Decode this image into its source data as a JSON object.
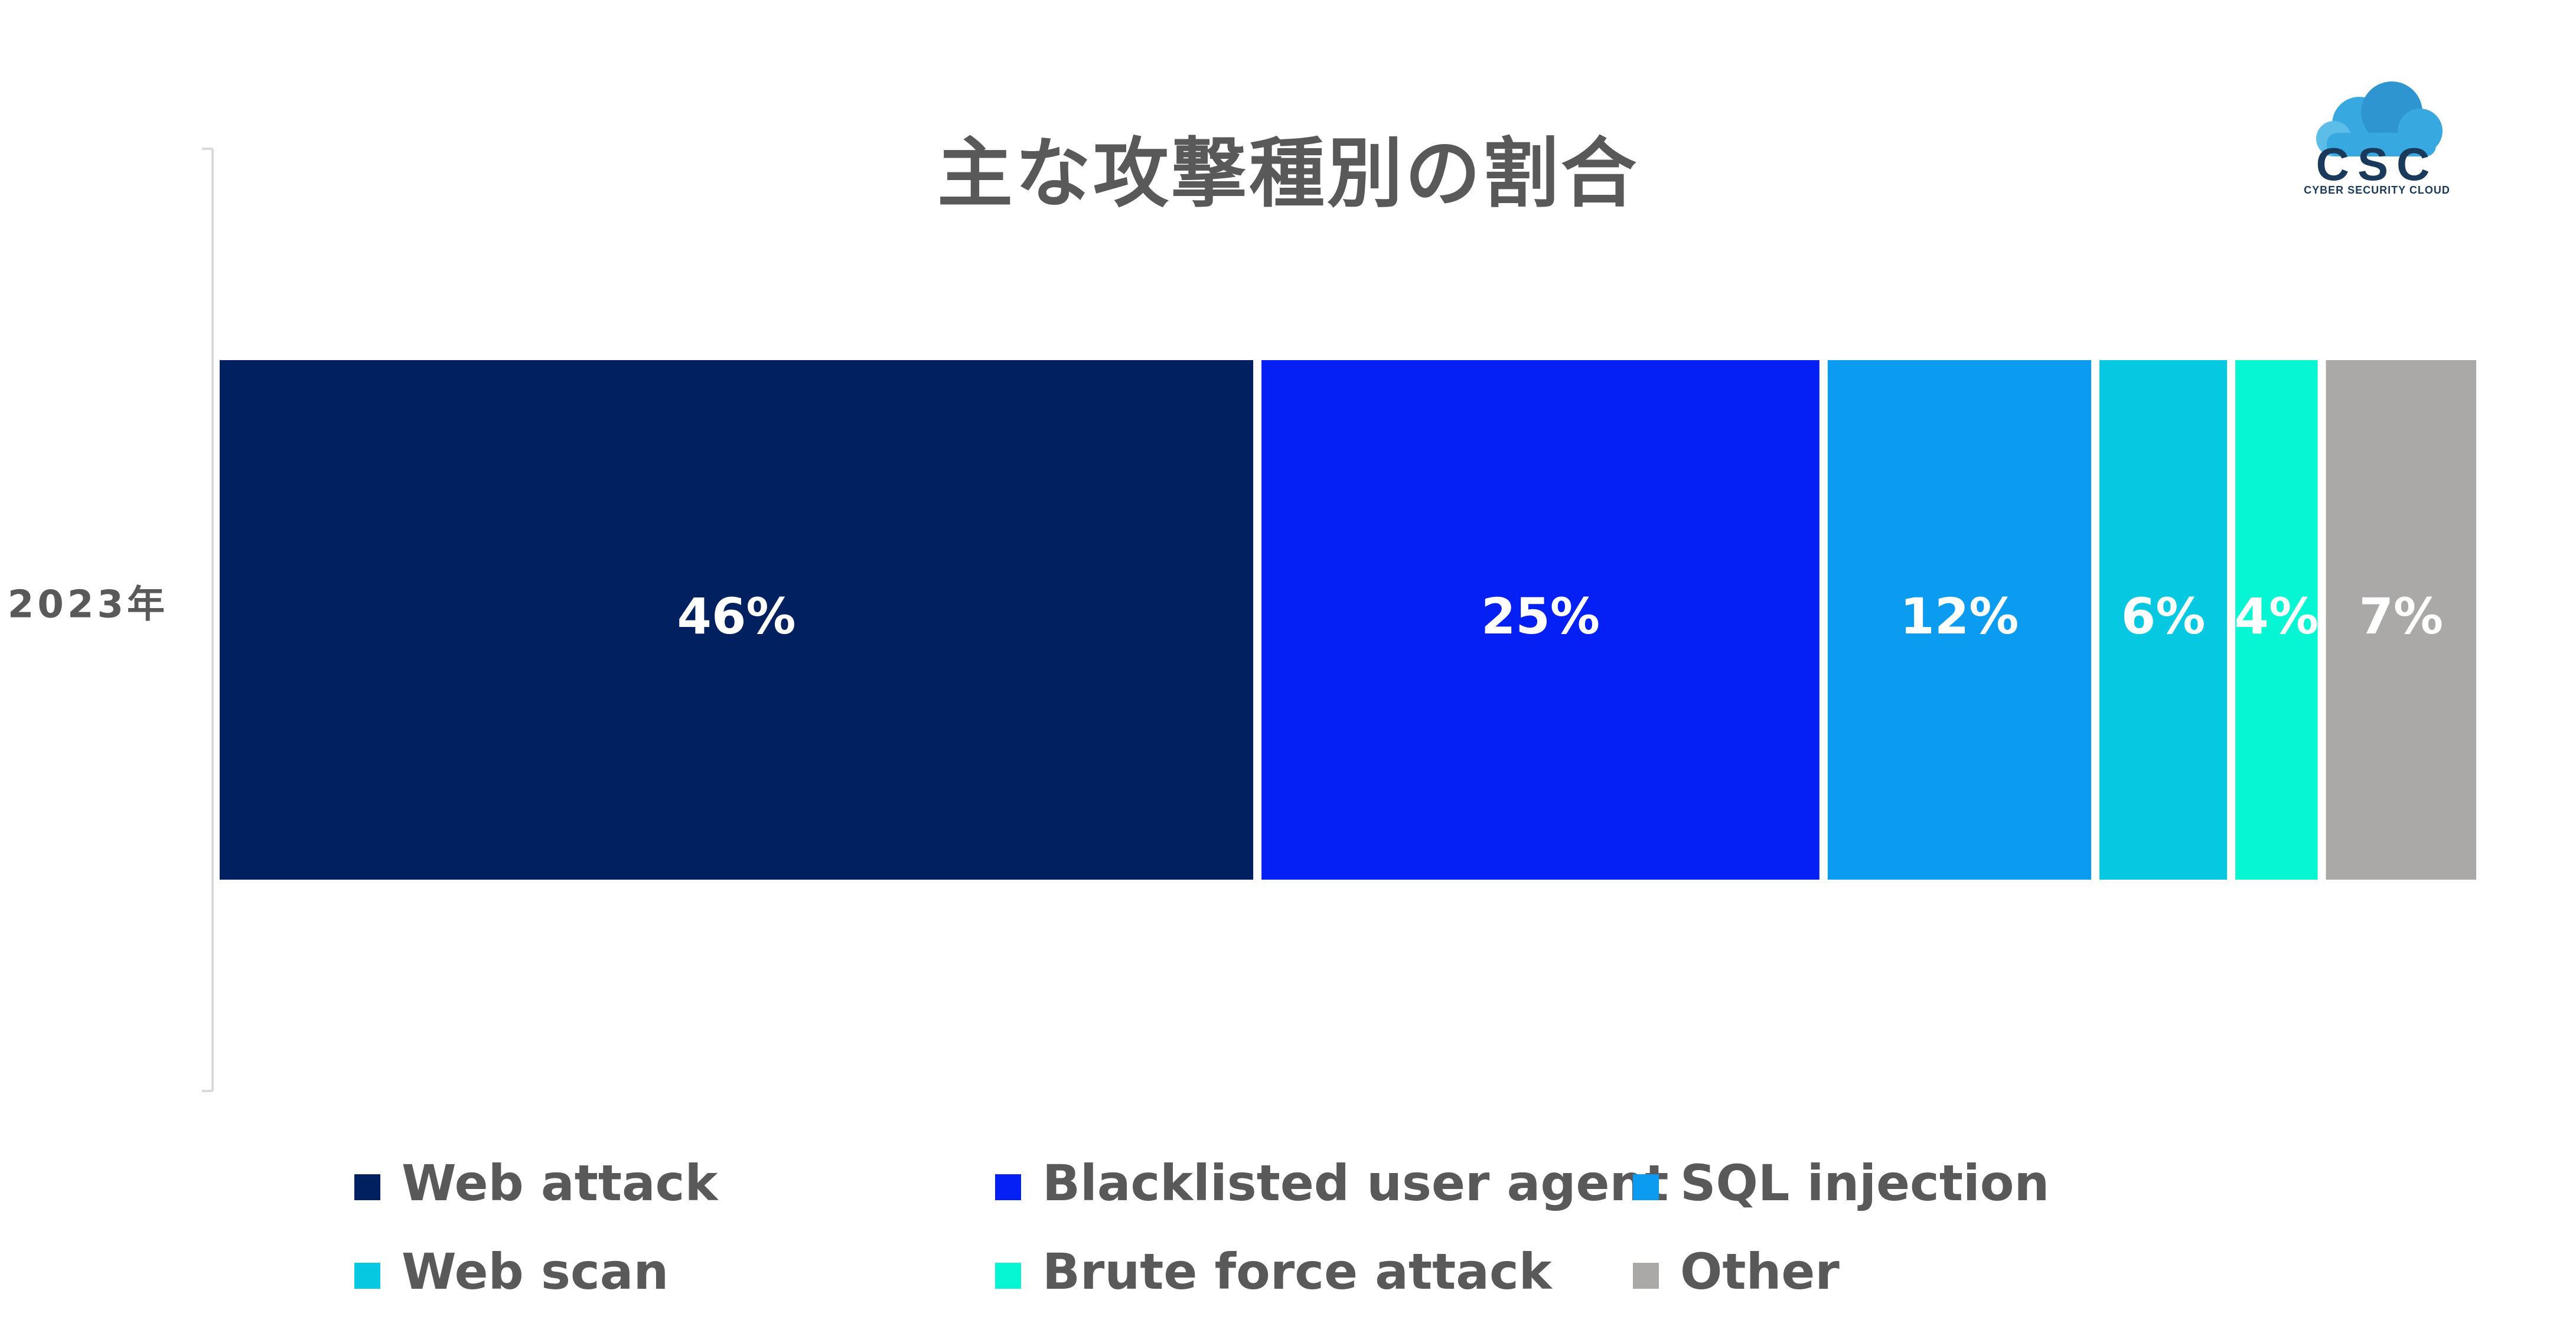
{
  "title": "主な攻撃種別の割合",
  "logo": {
    "mark": "CSC",
    "subtitle": "CYBER SECURITY CLOUD",
    "icon": "cloud-icon",
    "color": "#1a3a5c",
    "cloud_color": "#38a8e0"
  },
  "chart_data": {
    "type": "bar",
    "orientation": "horizontal",
    "stacked": true,
    "normalized_percent": true,
    "categories": [
      "2023年"
    ],
    "series": [
      {
        "name": "Web attack",
        "values": [
          46
        ],
        "label": "46%",
        "color": "#002060"
      },
      {
        "name": "Blacklisted user agent",
        "values": [
          25
        ],
        "label": "25%",
        "color": "#0520F5"
      },
      {
        "name": "SQL injection",
        "values": [
          12
        ],
        "label": "12%",
        "color": "#0B9BF0"
      },
      {
        "name": "Web scan",
        "values": [
          6
        ],
        "label": "6%",
        "color": "#06C8E0"
      },
      {
        "name": "Brute force attack",
        "values": [
          4
        ],
        "label": "4%",
        "color": "#06F5D2"
      },
      {
        "name": "Other",
        "values": [
          7
        ],
        "label": "7%",
        "color": "#ABA9A8"
      }
    ],
    "xlim": [
      0,
      100
    ],
    "grid": false,
    "legend_position": "bottom"
  }
}
